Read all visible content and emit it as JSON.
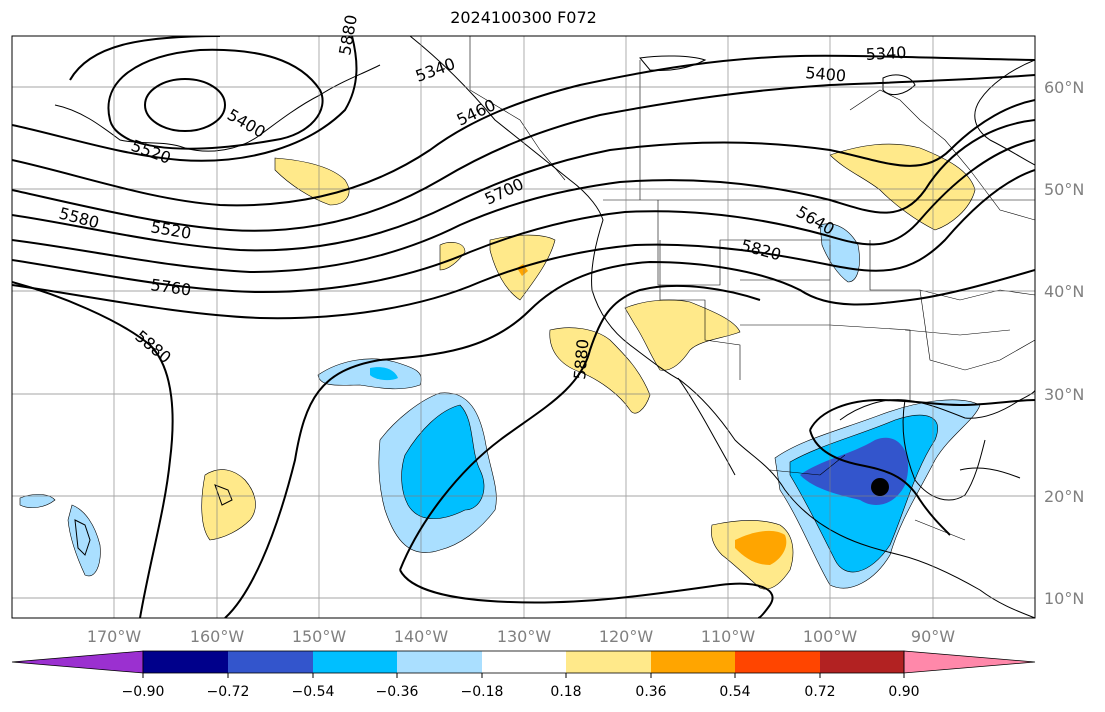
{
  "title": "2024100300 F072",
  "map": {
    "lon_range": [
      -180,
      -80
    ],
    "lat_range": [
      8,
      65
    ],
    "lat_labels": [
      "60°N",
      "50°N",
      "40°N",
      "30°N",
      "20°N",
      "10°N"
    ],
    "lon_labels": [
      "170°W",
      "160°W",
      "150°W",
      "140°W",
      "130°W",
      "120°W",
      "110°W",
      "100°W",
      "90°W"
    ],
    "contour_labels": [
      "5340",
      "5400",
      "5340",
      "5400",
      "5460",
      "5520",
      "5520",
      "5580",
      "5640",
      "5700",
      "5760",
      "5820",
      "5880",
      "5880",
      "5880"
    ],
    "storm_marker": {
      "lon": -95,
      "lat": 21
    }
  },
  "colorbar": {
    "ticks": [
      "−0.90",
      "−0.72",
      "−0.54",
      "−0.36",
      "−0.18",
      "0.18",
      "0.36",
      "0.54",
      "0.72",
      "0.90"
    ],
    "colors": [
      "#9b30d0",
      "#00008b",
      "#3355cc",
      "#00bfff",
      "#aadfff",
      "#ffffff",
      "#ffe98a",
      "#ffa500",
      "#ff4500",
      "#b22222",
      "#ff88aa"
    ]
  }
}
